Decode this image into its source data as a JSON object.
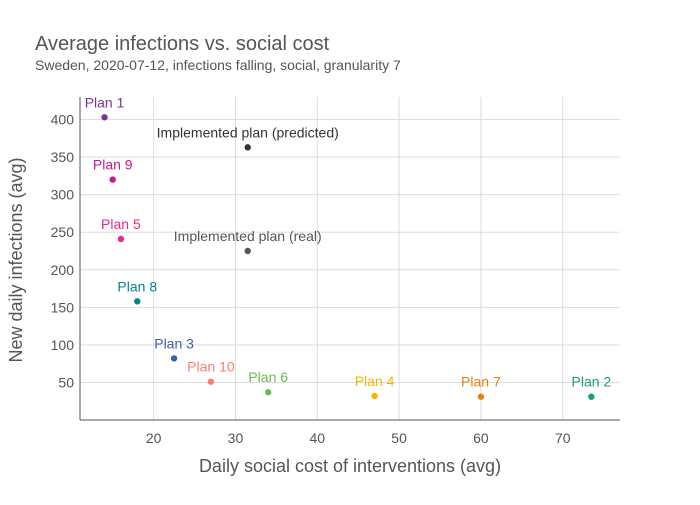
{
  "chart_data": {
    "type": "scatter",
    "title": "Average infections vs. social cost",
    "subtitle": "Sweden, 2020-07-12, infections falling, social, granularity 7",
    "xlabel": "Daily social cost of interventions (avg)",
    "ylabel": "New daily infections (avg)",
    "xlim": [
      11,
      77
    ],
    "ylim": [
      0,
      430
    ],
    "x_ticks": [
      20,
      30,
      40,
      50,
      60,
      70
    ],
    "y_ticks": [
      50,
      100,
      150,
      200,
      250,
      300,
      350,
      400
    ],
    "grid": true,
    "points": [
      {
        "label": "Plan 1",
        "x": 14,
        "y": 403,
        "color": "#7b3294"
      },
      {
        "label": "Implemented plan (predicted)",
        "x": 31.5,
        "y": 363,
        "color": "#333333"
      },
      {
        "label": "Plan 9",
        "x": 15,
        "y": 320,
        "color": "#c51b8a"
      },
      {
        "label": "Plan 5",
        "x": 16,
        "y": 241,
        "color": "#e7298a"
      },
      {
        "label": "Implemented plan (real)",
        "x": 31.5,
        "y": 225,
        "color": "#555555"
      },
      {
        "label": "Plan 8",
        "x": 18,
        "y": 158,
        "color": "#00868b"
      },
      {
        "label": "Plan 3",
        "x": 22.5,
        "y": 82,
        "color": "#3b5fb0"
      },
      {
        "label": "Plan 10",
        "x": 27,
        "y": 51,
        "color": "#fb8072"
      },
      {
        "label": "Plan 6",
        "x": 34,
        "y": 37,
        "color": "#66bb55"
      },
      {
        "label": "Plan 4",
        "x": 47,
        "y": 32,
        "color": "#f2b701"
      },
      {
        "label": "Plan 7",
        "x": 60,
        "y": 31,
        "color": "#e7800f"
      },
      {
        "label": "Plan 2",
        "x": 73.5,
        "y": 31,
        "color": "#1b9e77"
      }
    ]
  }
}
